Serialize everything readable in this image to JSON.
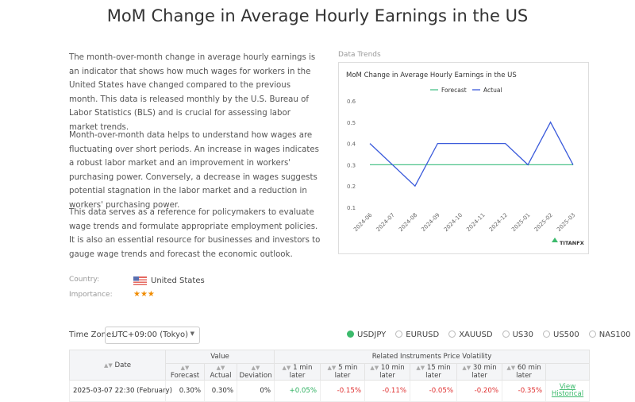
{
  "header": {
    "title": "MoM Change in Average Hourly Earnings in the US"
  },
  "description": {
    "paragraphs": [
      "The month-over-month change in average hourly earnings is an indicator that shows how much wages for workers in the United States have changed compared to the previous month. This data is released monthly by the U.S. Bureau of Labor Statistics (BLS) and is crucial for assessing labor market trends.",
      "Month-over-month data helps to understand how wages are fluctuating over short periods. An increase in wages indicates a robust labor market and an improvement in workers' purchasing power. Conversely, a decrease in wages suggests potential stagnation in the labor market and a reduction in workers' purchasing power.",
      "This data serves as a reference for policymakers to evaluate wage trends and formulate appropriate employment policies. It is also an essential resource for businesses and investors to gauge wage trends and forecast the economic outlook."
    ]
  },
  "info": {
    "country_label": "Country:",
    "country": "United States",
    "importance_label": "Importance:",
    "importance": "★★★"
  },
  "chart_section_label": "Data Trends",
  "chart_data": {
    "type": "line",
    "title": "MoM Change in Average Hourly Earnings in the US",
    "categories": [
      "2024-06",
      "2024-07",
      "2024-08",
      "2024-09",
      "2024-10",
      "2024-11",
      "2024-12",
      "2025-01",
      "2025-02",
      "2025-03"
    ],
    "series": [
      {
        "name": "Forecast",
        "color": "#4cc38a",
        "values": [
          0.3,
          0.3,
          0.3,
          0.3,
          0.3,
          0.3,
          0.3,
          0.3,
          0.3,
          0.3
        ]
      },
      {
        "name": "Actual",
        "color": "#3b5bdb",
        "values": [
          0.4,
          0.3,
          0.2,
          0.4,
          0.4,
          0.4,
          0.4,
          0.3,
          0.5,
          0.3
        ]
      }
    ],
    "ylim": [
      0.1,
      0.6
    ],
    "yticks": [
      0.1,
      0.2,
      0.3,
      0.4,
      0.5,
      0.6
    ],
    "grid": false,
    "legend": "top",
    "watermark": "TITANFX"
  },
  "controls": {
    "timezone_label": "Time Zone:",
    "timezone": "UTC+09:00 (Tokyo)",
    "instruments": [
      "USDJPY",
      "EURUSD",
      "XAUUSD",
      "US30",
      "US500",
      "NAS100"
    ]
  },
  "table": {
    "group_headers": [
      "Date",
      "Value",
      "Related Instruments Price Volatility"
    ],
    "columns": [
      "Forecast",
      "Actual",
      "Deviation",
      "1 min later",
      "5 min later",
      "10 min later",
      "15 min later",
      "30 min later",
      "60 min later"
    ],
    "rows": [
      [
        "2025-03-07 22:30 (February)",
        "0.30%",
        "0.30%",
        "0%",
        "+0.05%",
        "-0.15%",
        "-0.11%",
        "-0.05%",
        "-0.20%",
        "-0.35%",
        "View Historical"
      ]
    ]
  }
}
